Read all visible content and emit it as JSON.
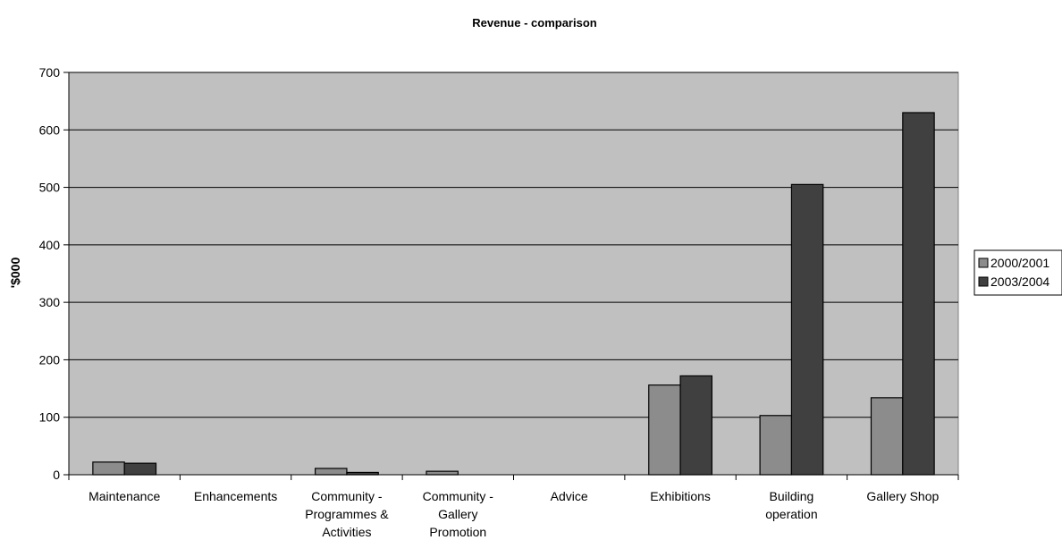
{
  "chart_data": {
    "type": "bar",
    "title": "Revenue - comparison",
    "xlabel": "",
    "ylabel": "'$000",
    "ylim": [
      0,
      700
    ],
    "yticks": [
      0,
      100,
      200,
      300,
      400,
      500,
      600,
      700
    ],
    "grid": true,
    "legend_position": "right",
    "categories": [
      [
        "Maintenance"
      ],
      [
        "Enhancements"
      ],
      [
        "Community -",
        "Programmes &",
        "Activities"
      ],
      [
        "Community -",
        "Gallery",
        "Promotion"
      ],
      [
        "Advice"
      ],
      [
        "Exhibitions"
      ],
      [
        "Building",
        "operation"
      ],
      [
        "Gallery Shop"
      ]
    ],
    "series": [
      {
        "name": "2000/2001",
        "color": "#8c8c8c",
        "values": [
          22,
          0,
          11,
          6,
          0,
          156,
          103,
          134
        ]
      },
      {
        "name": "2003/2004",
        "color": "#404040",
        "values": [
          20,
          0,
          4,
          0,
          0,
          172,
          505,
          630
        ]
      }
    ],
    "plot_background": "#c0c0c0"
  }
}
